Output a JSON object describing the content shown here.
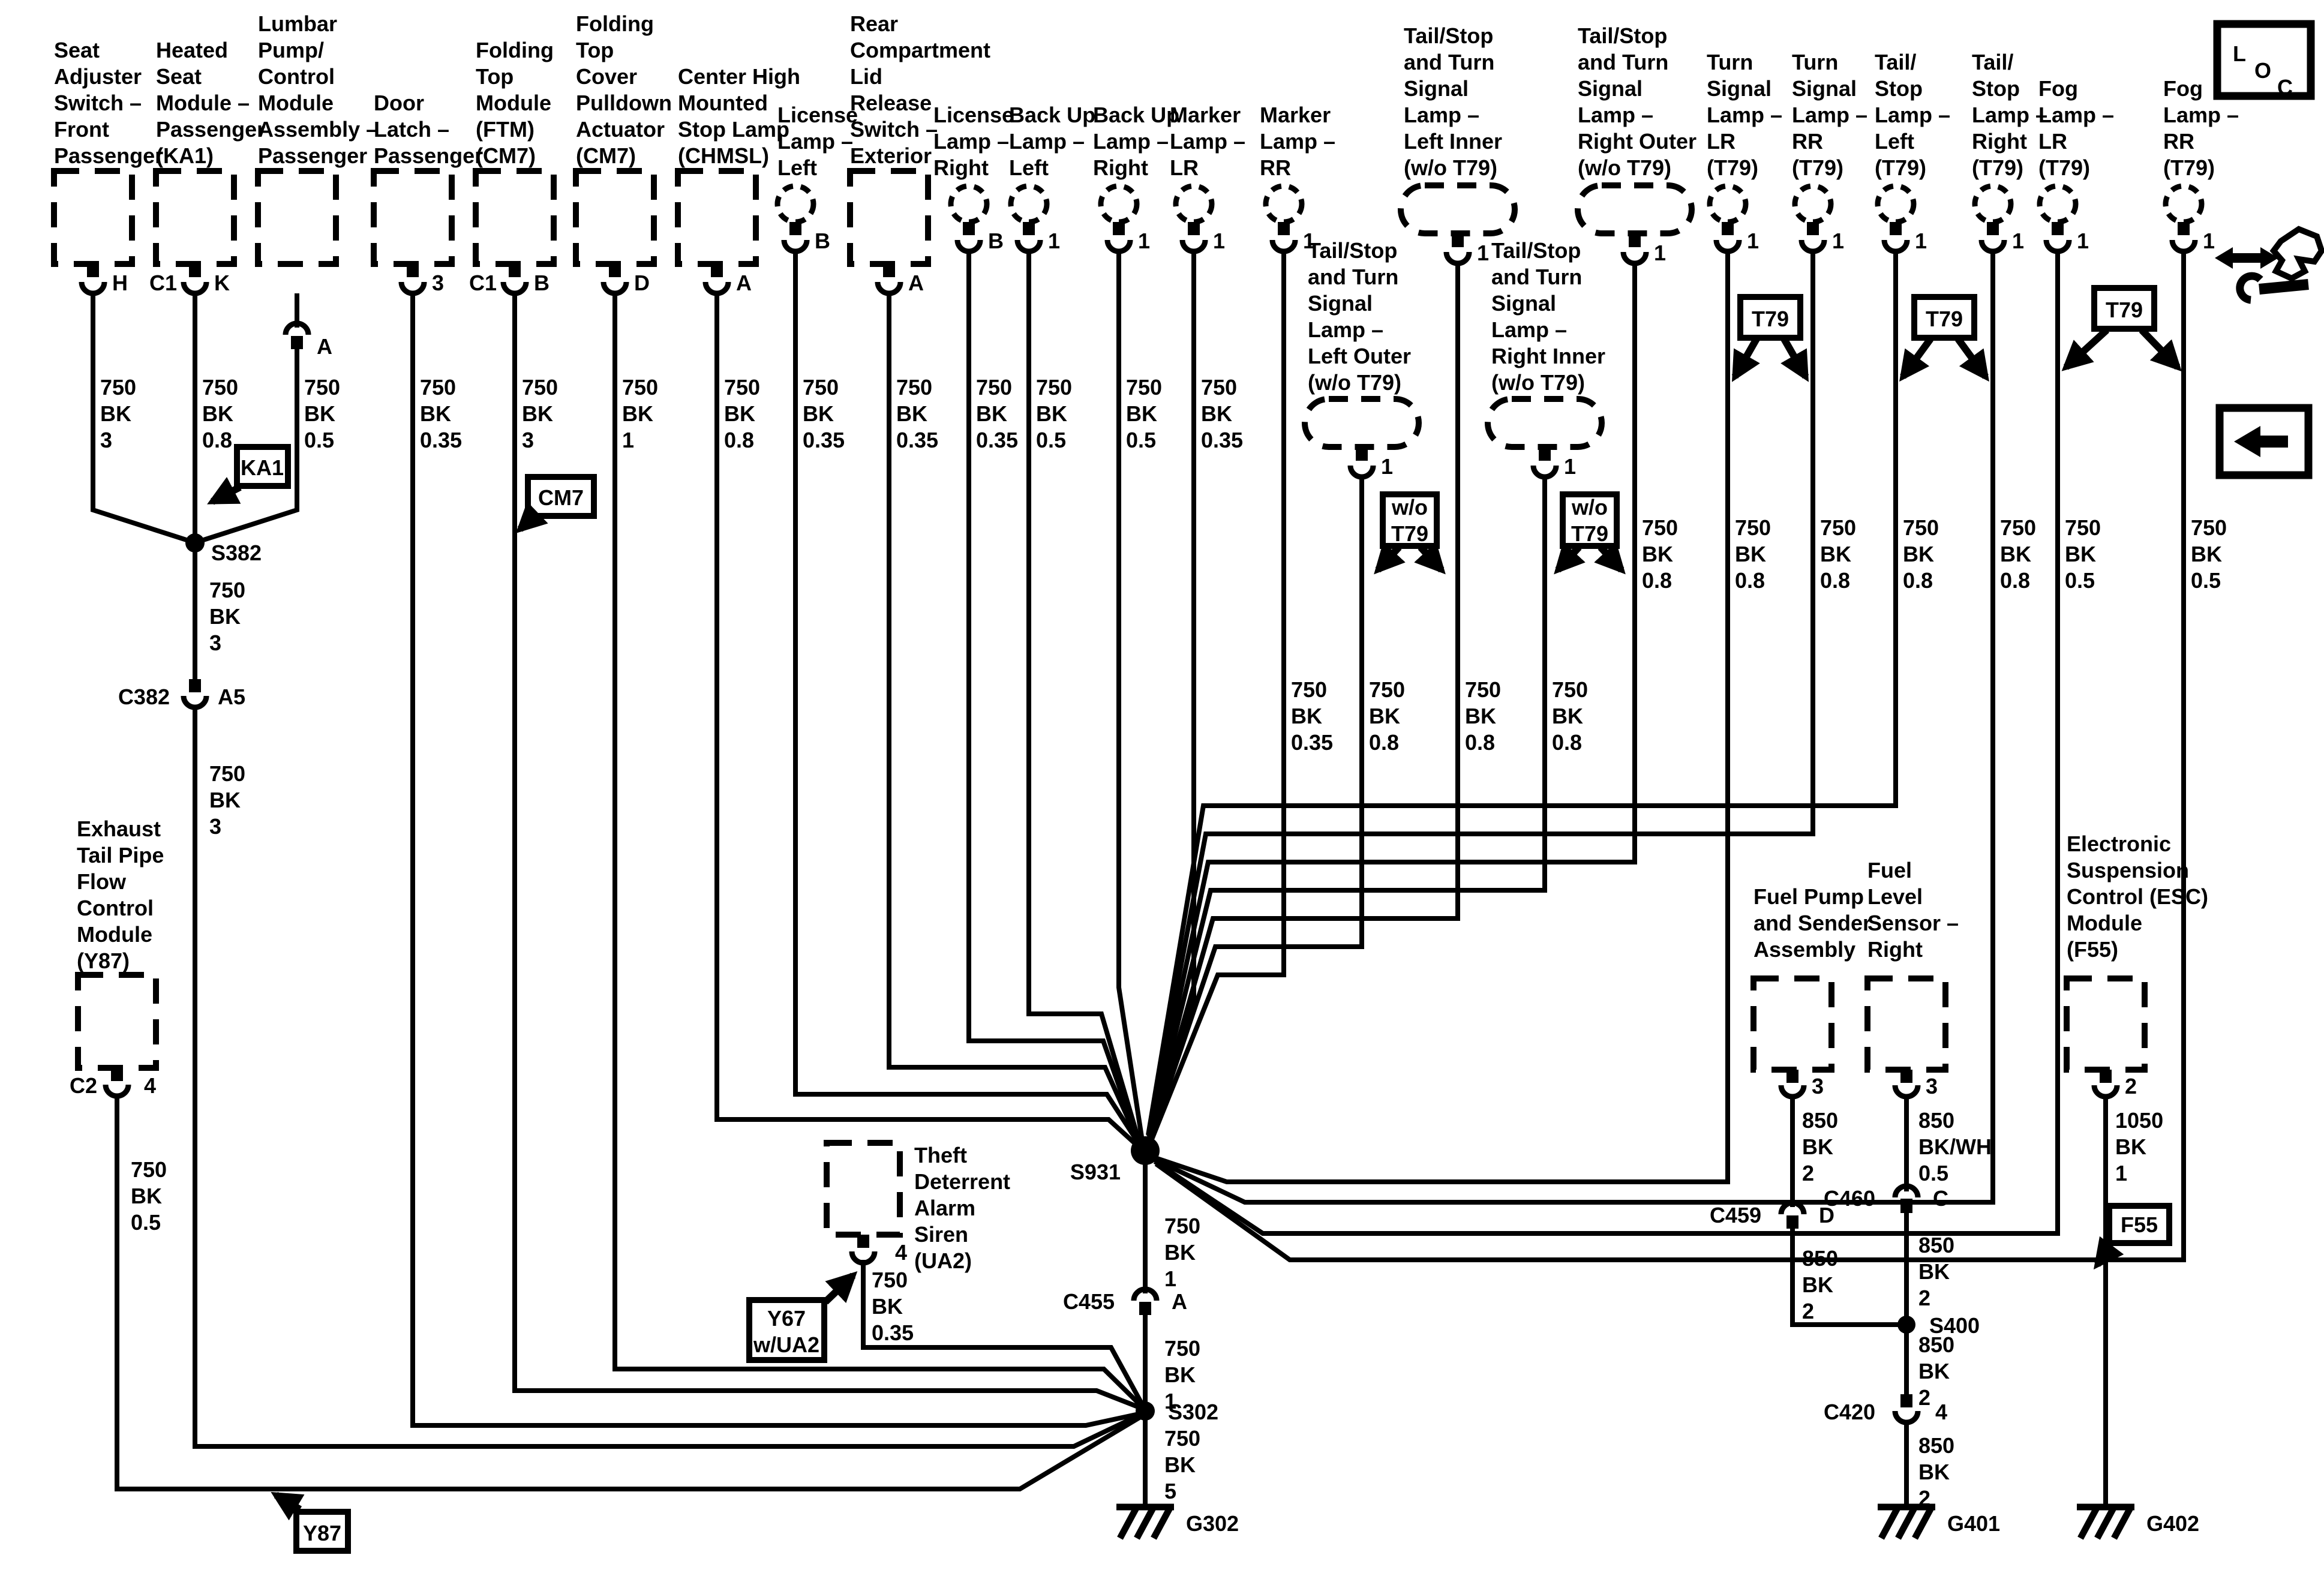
{
  "components": {
    "seat_adjuster": {
      "label": [
        "Seat",
        "Adjuster",
        "Switch –",
        "Front",
        "Passenger"
      ],
      "pin": "H"
    },
    "heated_seat": {
      "label": [
        "Heated",
        "Seat",
        "Module –",
        "Passenger",
        "(KA1)"
      ],
      "conn": "C1",
      "pin": "K"
    },
    "lumbar": {
      "label": [
        "Lumbar",
        "Pump/",
        "Control",
        "Module",
        "Assembly –",
        "Passenger"
      ],
      "pin": "A"
    },
    "door_latch": {
      "label": [
        "Door",
        "Latch –",
        "Passenger"
      ],
      "pin": "3"
    },
    "ftm": {
      "label": [
        "Folding",
        "Top",
        "Module",
        "(FTM)",
        "(CM7)"
      ],
      "conn": "C1",
      "pin": "B"
    },
    "ftc_actuator": {
      "label": [
        "Folding",
        "Top",
        "Cover",
        "Pulldown",
        "Actuator",
        "(CM7)"
      ],
      "pin": "D"
    },
    "chmsl": {
      "label": [
        "Center High",
        "Mounted",
        "Stop Lamp",
        "(CHMSL)"
      ],
      "pin": "A"
    },
    "license_left": {
      "label": [
        "License",
        "Lamp –",
        "Left"
      ],
      "pin": "B"
    },
    "rear_lid": {
      "label": [
        "Rear",
        "Compartment",
        "Lid",
        "Release",
        "Switch –",
        "Exterior"
      ],
      "pin": "A"
    },
    "license_right": {
      "label": [
        "License",
        "Lamp –",
        "Right"
      ],
      "pin": "B"
    },
    "backup_left": {
      "label": [
        "Back Up",
        "Lamp –",
        "Left"
      ],
      "pin": "1"
    },
    "backup_right": {
      "label": [
        "Back Up",
        "Lamp –",
        "Right"
      ],
      "pin": "1"
    },
    "marker_lr": {
      "label": [
        "Marker",
        "Lamp –",
        "LR"
      ],
      "pin": "1"
    },
    "marker_rr": {
      "label": [
        "Marker",
        "Lamp –",
        "RR"
      ],
      "pin": "1"
    },
    "ts_left_inner": {
      "label": [
        "Tail/Stop",
        "and Turn",
        "Signal",
        "Lamp –",
        "Left Inner",
        "(w/o T79)"
      ],
      "pin": "1"
    },
    "ts_left_outer": {
      "label": [
        "Tail/Stop",
        "and Turn",
        "Signal",
        "Lamp –",
        "Left Outer",
        "(w/o T79)"
      ],
      "pin": "1"
    },
    "ts_right_inner": {
      "label": [
        "Tail/Stop",
        "and Turn",
        "Signal",
        "Lamp –",
        "Right Inner",
        "(w/o T79)"
      ],
      "pin": "1"
    },
    "ts_right_outer": {
      "label": [
        "Tail/Stop",
        "and Turn",
        "Signal",
        "Lamp –",
        "Right Outer",
        "(w/o T79)"
      ],
      "pin": "1"
    },
    "turn_lr": {
      "label": [
        "Turn",
        "Signal",
        "Lamp –",
        "LR",
        "(T79)"
      ],
      "pin": "1"
    },
    "turn_rr": {
      "label": [
        "Turn",
        "Signal",
        "Lamp –",
        "RR",
        "(T79)"
      ],
      "pin": "1"
    },
    "tailstop_left": {
      "label": [
        "Tail/",
        "Stop",
        "Lamp –",
        "Left",
        "(T79)"
      ],
      "pin": "1"
    },
    "tailstop_right": {
      "label": [
        "Tail/",
        "Stop",
        "Lamp –",
        "Right",
        "(T79)"
      ],
      "pin": "1"
    },
    "fog_lr": {
      "label": [
        "Fog",
        "Lamp –",
        "LR",
        "(T79)"
      ],
      "pin": "1"
    },
    "fog_rr": {
      "label": [
        "Fog",
        "Lamp –",
        "RR",
        "(T79)"
      ],
      "pin": "1"
    },
    "exhaust": {
      "label": [
        "Exhaust",
        "Tail Pipe",
        "Flow",
        "Control",
        "Module",
        "(Y87)"
      ],
      "conn": "C2",
      "pin": "4"
    },
    "siren": {
      "label": [
        "Theft",
        "Deterrent",
        "Alarm",
        "Siren",
        "(UA2)"
      ],
      "pin": "4"
    },
    "fuel_pump": {
      "label": [
        "Fuel Pump",
        "and Sender",
        "Assembly"
      ],
      "pin": "3"
    },
    "fuel_level": {
      "label": [
        "Fuel",
        "Level",
        "Sensor –",
        "Right"
      ],
      "pin": "3"
    },
    "esc": {
      "label": [
        "Electronic",
        "Suspension",
        "Control (ESC)",
        "Module",
        "(F55)"
      ],
      "pin": "2"
    }
  },
  "wire_labels": [
    [
      "750",
      "BK",
      "3"
    ],
    [
      "750",
      "BK",
      "0.8"
    ],
    [
      "750",
      "BK",
      "0.5"
    ],
    [
      "750",
      "BK",
      "0.35"
    ],
    [
      "750",
      "BK",
      "3"
    ],
    [
      "750",
      "BK",
      "1"
    ],
    [
      "750",
      "BK",
      "0.8"
    ],
    [
      "750",
      "BK",
      "0.35"
    ],
    [
      "750",
      "BK",
      "0.35"
    ],
    [
      "750",
      "BK",
      "0.35"
    ],
    [
      "750",
      "BK",
      "0.5"
    ],
    [
      "750",
      "BK",
      "0.5"
    ],
    [
      "750",
      "BK",
      "0.35"
    ],
    [
      "750",
      "BK",
      "0.35"
    ],
    [
      "750",
      "BK",
      "0.8"
    ],
    [
      "750",
      "BK",
      "0.8"
    ],
    [
      "750",
      "BK",
      "0.8"
    ],
    [
      "750",
      "BK",
      "0.8"
    ],
    [
      "750",
      "BK",
      "0.8"
    ],
    [
      "750",
      "BK",
      "0.8"
    ],
    [
      "750",
      "BK",
      "0.8"
    ],
    [
      "750",
      "BK",
      "0.8"
    ],
    [
      "750",
      "BK",
      "0.5"
    ],
    [
      "750",
      "BK",
      "0.5"
    ],
    [
      "750",
      "BK",
      "3"
    ],
    [
      "750",
      "BK",
      "3"
    ],
    [
      "750",
      "BK",
      "0.5"
    ],
    [
      "750",
      "BK",
      "0.35"
    ],
    [
      "750",
      "BK",
      "1"
    ],
    [
      "750",
      "BK",
      "1"
    ],
    [
      "750",
      "BK",
      "5"
    ],
    [
      "850",
      "BK",
      "2"
    ],
    [
      "850",
      "BK/WH",
      "0.5"
    ],
    [
      "1050",
      "BK",
      "1"
    ],
    [
      "850",
      "BK",
      "2"
    ],
    [
      "850",
      "BK",
      "2"
    ],
    [
      "850",
      "BK",
      "2"
    ],
    [
      "850",
      "BK",
      "2"
    ]
  ],
  "splices": {
    "s382": "S382",
    "s931": "S931",
    "s302": "S302",
    "s400": "S400"
  },
  "grounds": {
    "g302": "G302",
    "g401": "G401",
    "g402": "G402"
  },
  "inline_connectors": {
    "c382": {
      "name": "C382",
      "pin": "A5"
    },
    "c455": {
      "name": "C455",
      "pin": "A"
    },
    "c459": {
      "name": "C459",
      "pin": "D"
    },
    "c460": {
      "name": "C460",
      "pin": "C"
    },
    "c420": {
      "name": "C420",
      "pin": "4"
    }
  },
  "ref_labels": {
    "ka1": "KA1",
    "cm7": "CM7",
    "wo_t79": [
      "w/o",
      "T79"
    ],
    "t79": "T79",
    "y67": [
      "Y67",
      "w/UA2"
    ],
    "y87": "Y87",
    "f55": "F55"
  },
  "icons": {
    "loc": [
      "L",
      "O",
      "C"
    ]
  }
}
